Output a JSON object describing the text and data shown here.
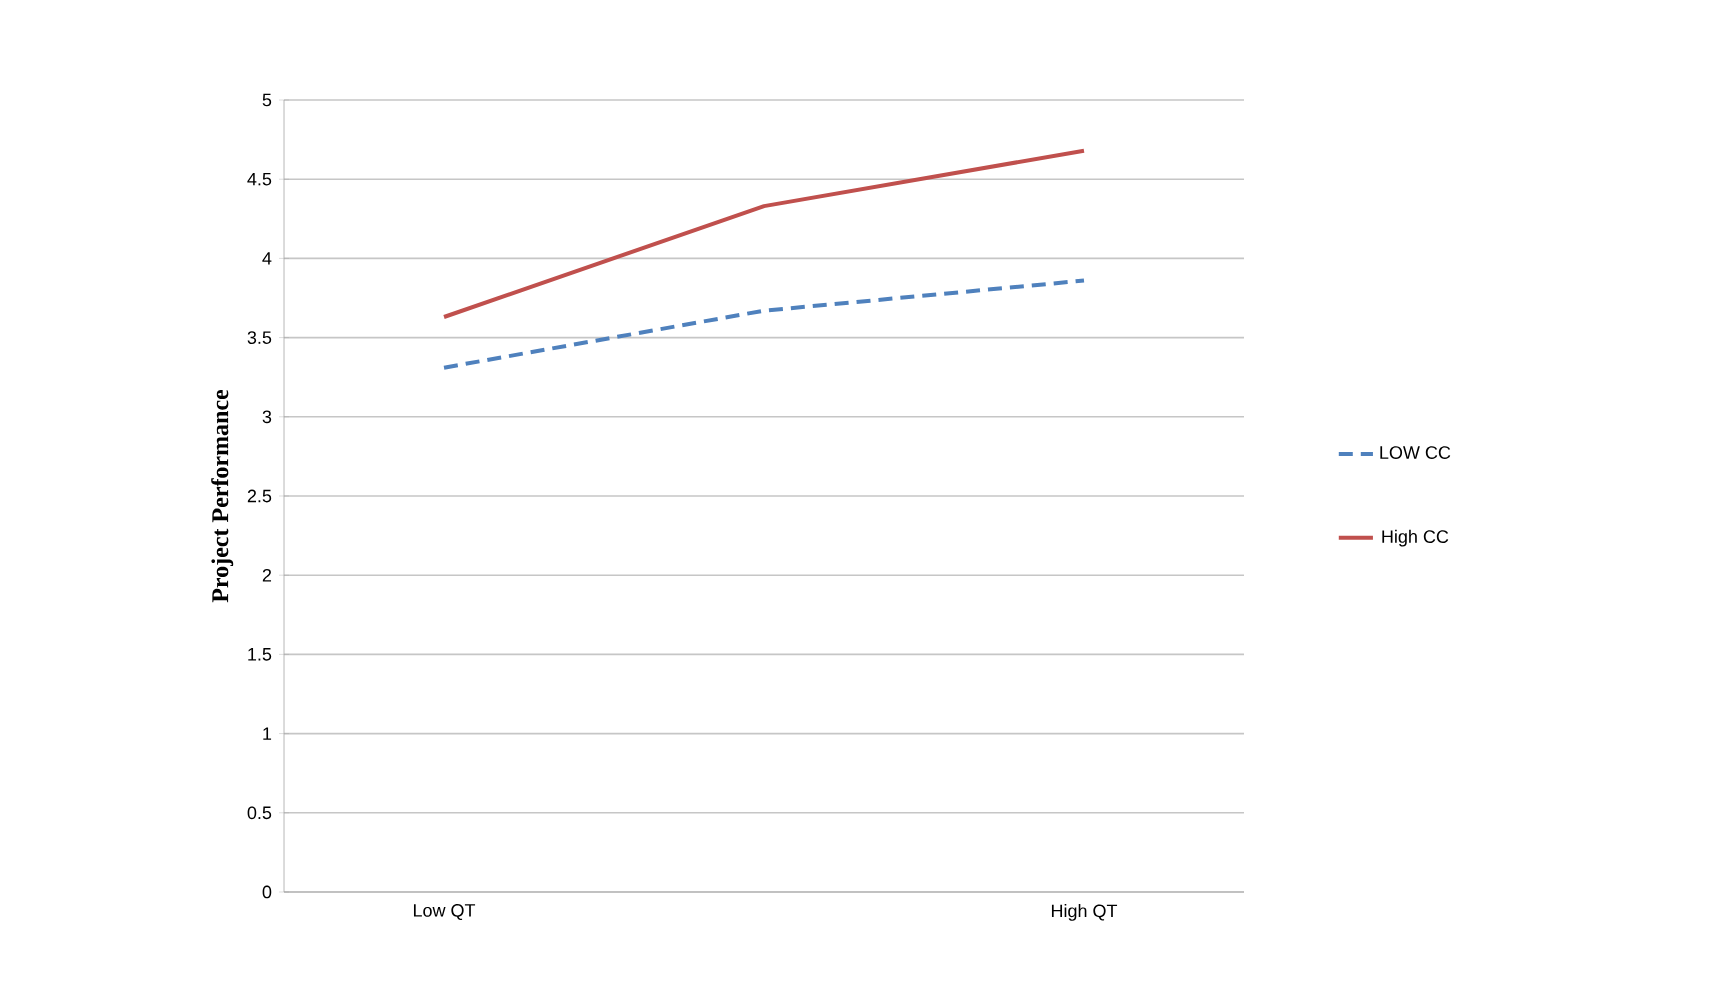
{
  "chart_data": {
    "type": "line",
    "ylabel": "Project Performance",
    "categories": [
      "Low QT",
      null,
      "High QT"
    ],
    "series": [
      {
        "name": "LOW CC",
        "color": "#4f81bd",
        "line_style": "dashed",
        "values": [
          3.31,
          3.67,
          3.86
        ]
      },
      {
        "name": "High CC",
        "color": "#c0504d",
        "line_style": "solid",
        "values": [
          3.63,
          4.33,
          4.68
        ]
      }
    ],
    "ylim": [
      0,
      5
    ],
    "yticks": [
      0,
      0.5,
      1,
      1.5,
      2,
      2.5,
      3,
      3.5,
      4,
      4.5,
      5
    ],
    "grid": "y",
    "legend": "right",
    "marker": "none"
  }
}
